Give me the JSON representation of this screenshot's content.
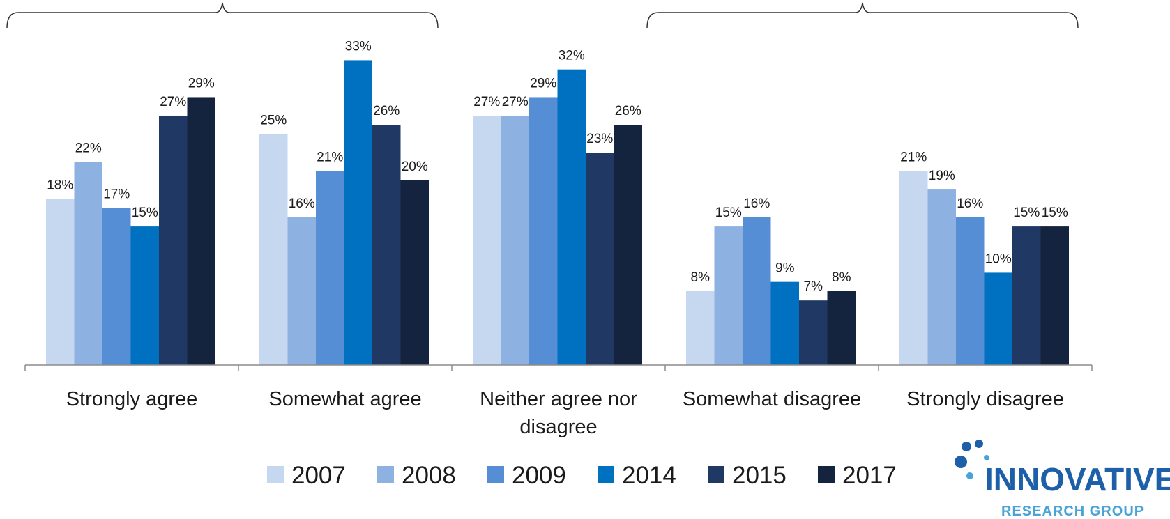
{
  "chart_data": {
    "type": "bar",
    "categories": [
      "Strongly agree",
      "Somewhat agree",
      "Neither agree nor disagree",
      "Somewhat disagree",
      "Strongly disagree"
    ],
    "category_lines": [
      [
        "Strongly agree"
      ],
      [
        "Somewhat agree"
      ],
      [
        "Neither agree nor",
        "disagree"
      ],
      [
        "Somewhat disagree"
      ],
      [
        "Strongly disagree"
      ]
    ],
    "series": [
      {
        "name": "2007",
        "color": "#c6d8f0",
        "values": [
          18,
          25,
          27,
          8,
          21
        ]
      },
      {
        "name": "2008",
        "color": "#8db2e2",
        "values": [
          22,
          16,
          27,
          15,
          19
        ]
      },
      {
        "name": "2009",
        "color": "#558ed5",
        "values": [
          17,
          21,
          29,
          16,
          16
        ]
      },
      {
        "name": "2014",
        "color": "#0070c0",
        "values": [
          15,
          33,
          32,
          9,
          10
        ]
      },
      {
        "name": "2015",
        "color": "#1f3864",
        "values": [
          27,
          26,
          23,
          7,
          15
        ]
      },
      {
        "name": "2017",
        "color": "#14243e",
        "values": [
          29,
          20,
          26,
          8,
          15
        ]
      }
    ],
    "value_suffix": "%",
    "ylim": [
      0,
      35
    ],
    "grid": false,
    "legend_position": "bottom",
    "brackets": [
      {
        "from_category": 0,
        "to_category": 1
      },
      {
        "from_category": 3,
        "to_category": 4
      }
    ]
  },
  "logo": {
    "name": "INNOVATIVE",
    "subtitle": "RESEARCH GROUP"
  }
}
